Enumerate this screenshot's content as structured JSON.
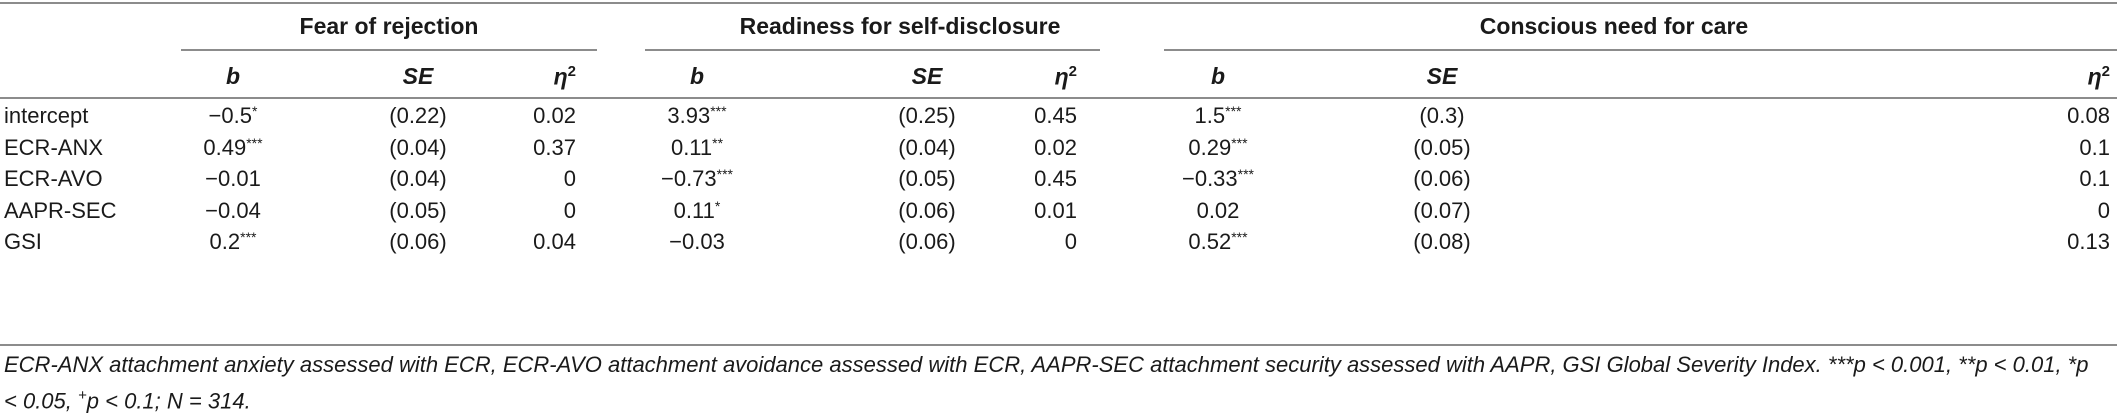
{
  "table": {
    "groups": [
      {
        "label": "Fear of rejection"
      },
      {
        "label": "Readiness for self-disclosure"
      },
      {
        "label": "Conscious need for care"
      }
    ],
    "subheaders": [
      {
        "text": "b"
      },
      {
        "text": "SE"
      },
      {
        "text": "η",
        "sup": "2"
      },
      {
        "text": "b"
      },
      {
        "text": "SE"
      },
      {
        "text": "η",
        "sup": "2"
      },
      {
        "text": "b"
      },
      {
        "text": "SE"
      },
      {
        "text": "η",
        "sup": "2"
      }
    ],
    "rows": [
      {
        "label": "intercept",
        "cells": [
          {
            "v": "−0.5",
            "s": "*"
          },
          {
            "v": "(0.22)"
          },
          {
            "v": "0.02"
          },
          {
            "v": "3.93",
            "s": "***"
          },
          {
            "v": "(0.25)"
          },
          {
            "v": "0.45"
          },
          {
            "v": "1.5",
            "s": "***"
          },
          {
            "v": "(0.3)"
          },
          {
            "v": "0.08"
          }
        ]
      },
      {
        "label": "ECR-ANX",
        "cells": [
          {
            "v": "0.49",
            "s": "***"
          },
          {
            "v": "(0.04)"
          },
          {
            "v": "0.37"
          },
          {
            "v": "0.11",
            "s": "**"
          },
          {
            "v": "(0.04)"
          },
          {
            "v": "0.02"
          },
          {
            "v": "0.29",
            "s": "***"
          },
          {
            "v": "(0.05)"
          },
          {
            "v": "0.1"
          }
        ]
      },
      {
        "label": "ECR-AVO",
        "cells": [
          {
            "v": "−0.01"
          },
          {
            "v": "(0.04)"
          },
          {
            "v": "0"
          },
          {
            "v": "−0.73",
            "s": "***"
          },
          {
            "v": "(0.05)"
          },
          {
            "v": "0.45"
          },
          {
            "v": "−0.33",
            "s": "***"
          },
          {
            "v": "(0.06)"
          },
          {
            "v": "0.1"
          }
        ]
      },
      {
        "label": "AAPR-SEC",
        "cells": [
          {
            "v": "−0.04"
          },
          {
            "v": "(0.05)"
          },
          {
            "v": "0"
          },
          {
            "v": "0.11",
            "s": "*"
          },
          {
            "v": "(0.06)"
          },
          {
            "v": "0.01"
          },
          {
            "v": "0.02"
          },
          {
            "v": "(0.07)"
          },
          {
            "v": "0"
          }
        ]
      },
      {
        "label": "GSI",
        "cells": [
          {
            "v": "0.2",
            "s": "***"
          },
          {
            "v": "(0.06)"
          },
          {
            "v": "0.04"
          },
          {
            "v": "−0.03"
          },
          {
            "v": "(0.06)"
          },
          {
            "v": "0"
          },
          {
            "v": "0.52",
            "s": "***"
          },
          {
            "v": "(0.08)"
          },
          {
            "v": "0.13"
          }
        ]
      }
    ]
  },
  "footnote": {
    "part1": "ECR-ANX attachment anxiety assessed with ECR, ECR-AVO attachment avoidance assessed with ECR, AAPR-SEC attachment security assessed with AAPR, GSI Global Severity Index. ***",
    "part2": "p < 0.001, **",
    "part3": "p < 0.01, *",
    "part4": "p < 0.05, ",
    "plus": "+",
    "part5": "p < 0.1; ",
    "part6": "N = 314."
  }
}
